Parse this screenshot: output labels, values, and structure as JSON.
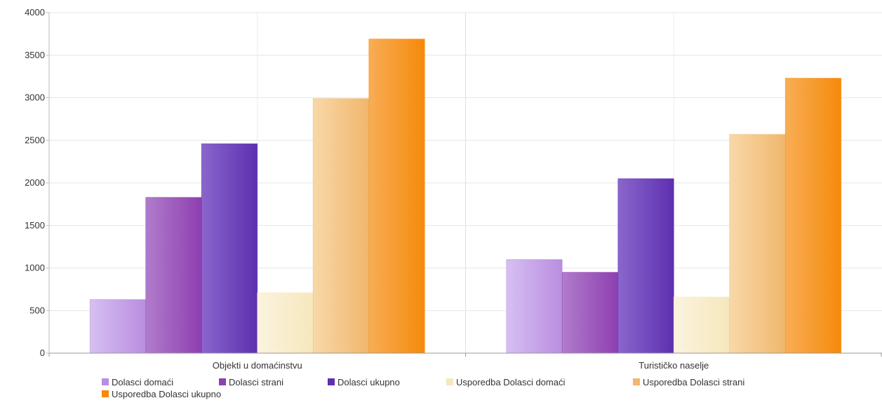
{
  "chart_data": {
    "type": "bar",
    "title": "",
    "xlabel": "",
    "ylabel": "",
    "ylim": [
      0,
      4000
    ],
    "yticks": [
      0,
      500,
      1000,
      1500,
      2000,
      2500,
      3000,
      3500,
      4000
    ],
    "ytick_labels": [
      "0",
      "500",
      "1000",
      "1500",
      "2000",
      "2500",
      "3000",
      "3500",
      "4000"
    ],
    "grid": true,
    "legend_position": "bottom-left",
    "categories": [
      "Objekti u domaćinstvu",
      "Turističko naselje"
    ],
    "series": [
      {
        "name": "Dolasci domaći",
        "values": [
          630,
          1100
        ],
        "color": "#b98ee0",
        "color_light": "#d6bff2"
      },
      {
        "name": "Dolasci strani",
        "values": [
          1830,
          950
        ],
        "color": "#8e3fb0",
        "color_light": "#b07ccc"
      },
      {
        "name": "Dolasci ukupno",
        "values": [
          2460,
          2050
        ],
        "color": "#5e2fb0",
        "color_light": "#8a66cc"
      },
      {
        "name": "Usporedba Dolasci domaći",
        "values": [
          710,
          660
        ],
        "color": "#f6e7bd",
        "color_light": "#fbf3de"
      },
      {
        "name": "Usporedba Dolasci strani",
        "values": [
          2990,
          2570
        ],
        "color": "#f0b76d",
        "color_light": "#f8d8a8"
      },
      {
        "name": "Usporedba Dolasci ukupno",
        "values": [
          3690,
          3230
        ],
        "color": "#f58a0b",
        "color_light": "#f8ad55"
      }
    ]
  }
}
